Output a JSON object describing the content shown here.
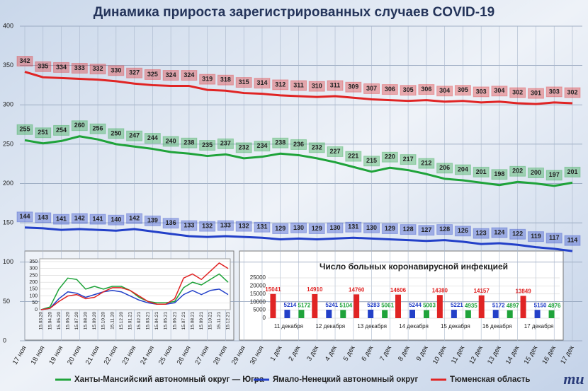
{
  "chart_data": [
    {
      "type": "line",
      "title": "Динамика прироста зарегистрированных случаев COVID-19",
      "categories": [
        "17 ноя",
        "18 ноя",
        "19 ноя",
        "20 ноя",
        "21 ноя",
        "22 ноя",
        "23 ноя",
        "24 ноя",
        "25 ноя",
        "26 ноя",
        "27 ноя",
        "28 ноя",
        "29 ноя",
        "30 ноя",
        "1 дек",
        "2 дек",
        "3 дек",
        "4 дек",
        "5 дек",
        "6 дек",
        "7 дек",
        "8 дек",
        "9 дек",
        "10 дек",
        "11 дек",
        "12 дек",
        "13 дек",
        "14 дек",
        "15 дек",
        "16 дек",
        "17 дек"
      ],
      "series": [
        {
          "name": "Ханты-Мансийский автономный округ — Югра",
          "color": "#1fa33a",
          "values": [
            255,
            251,
            254,
            260,
            256,
            250,
            247,
            244,
            240,
            238,
            235,
            237,
            232,
            234,
            238,
            236,
            232,
            227,
            221,
            215,
            220,
            217,
            212,
            206,
            204,
            201,
            198,
            202,
            200,
            197,
            201
          ]
        },
        {
          "name": "Ямало-Ненецкий автономный округ",
          "color": "#2340c8",
          "values": [
            144,
            143,
            141,
            142,
            141,
            140,
            142,
            139,
            136,
            133,
            132,
            133,
            132,
            131,
            129,
            130,
            129,
            130,
            131,
            130,
            129,
            128,
            127,
            128,
            126,
            123,
            124,
            122,
            119,
            117,
            114
          ]
        },
        {
          "name": "Тюменская область",
          "color": "#e02424",
          "values": [
            342,
            335,
            334,
            333,
            332,
            330,
            327,
            325,
            324,
            324,
            319,
            318,
            315,
            314,
            312,
            311,
            310,
            311,
            309,
            307,
            306,
            305,
            306,
            304,
            305,
            303,
            304,
            302,
            301,
            303,
            302
          ]
        }
      ],
      "ylim": [
        0,
        400
      ],
      "yticks": [
        0,
        50,
        100,
        150,
        200,
        250,
        300,
        350,
        400
      ],
      "grid": true
    },
    {
      "type": "line",
      "categories": [
        "15.03.20",
        "15.04.20",
        "15.05.20",
        "15.06.20",
        "15.07.20",
        "15.08.20",
        "15.09.20",
        "15.10.20",
        "15.11.20",
        "15.12.20",
        "15.01.21",
        "15.02.21",
        "15.03.21",
        "15.04.21",
        "15.05.21",
        "15.06.21",
        "15.07.21",
        "15.08.21",
        "15.09.21",
        "15.10.21",
        "15.11.21",
        "15.12.21"
      ],
      "series": [
        {
          "color": "#1fa33a",
          "values": [
            0,
            20,
            150,
            230,
            220,
            150,
            170,
            150,
            170,
            170,
            140,
            90,
            60,
            50,
            50,
            60,
            160,
            200,
            180,
            220,
            260,
            200
          ]
        },
        {
          "color": "#2340c8",
          "values": [
            0,
            10,
            80,
            130,
            120,
            90,
            110,
            130,
            140,
            130,
            100,
            70,
            50,
            40,
            40,
            50,
            110,
            140,
            110,
            140,
            150,
            110
          ]
        },
        {
          "color": "#e02424",
          "values": [
            0,
            10,
            60,
            100,
            110,
            80,
            90,
            130,
            160,
            160,
            140,
            100,
            60,
            40,
            40,
            80,
            230,
            260,
            220,
            280,
            340,
            300
          ]
        }
      ],
      "ylim": [
        0,
        350
      ],
      "yticks": [
        0,
        50,
        100,
        150,
        200,
        250,
        300,
        350
      ]
    },
    {
      "type": "bar",
      "title": "Число больных коронавирусной инфекцией",
      "categories": [
        "11 декабря",
        "12 декабря",
        "13 декабря",
        "14 декабря",
        "15 декабря",
        "16 декабря",
        "17 декабря"
      ],
      "series": [
        {
          "color": "#e02424",
          "values": [
            15041,
            14910,
            14760,
            14606,
            14380,
            14157,
            13849
          ]
        },
        {
          "color": "#2340c8",
          "values": [
            5214,
            5241,
            5283,
            5244,
            5221,
            5172,
            5150
          ]
        },
        {
          "color": "#1fa33a",
          "values": [
            5172,
            5104,
            5061,
            5003,
            4935,
            4897,
            4876
          ]
        }
      ],
      "ylim": [
        0,
        25000
      ],
      "yticks": [
        0,
        5000,
        10000,
        15000,
        20000,
        25000
      ]
    }
  ],
  "logo": "mu"
}
